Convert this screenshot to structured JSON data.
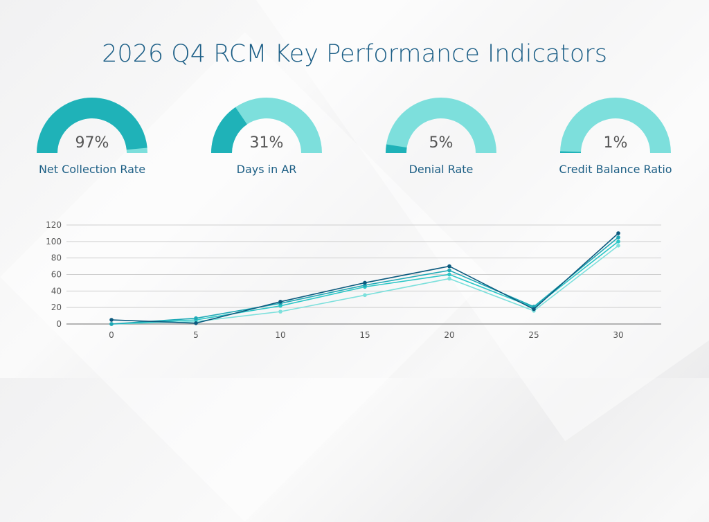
{
  "title": "2026 Q4 RCM Key Performance Indicators",
  "colors": {
    "title": "#1b5e86",
    "gauge_fill": "#1fb2b8",
    "gauge_track": "#7ddfdc"
  },
  "gauges": [
    {
      "value_text": "97%",
      "value": 97,
      "label": "Net Collection Rate"
    },
    {
      "value_text": "31%",
      "value": 31,
      "label": "Days in AR"
    },
    {
      "value_text": "5%",
      "value": 5,
      "label": "Denial Rate"
    },
    {
      "value_text": "1%",
      "value": 1,
      "label": "Credit Balance Ratio"
    }
  ],
  "chart_data": {
    "type": "line",
    "title": "",
    "xlabel": "",
    "ylabel": "",
    "x": [
      0,
      5,
      10,
      15,
      20,
      25,
      30
    ],
    "x_ticks": [
      "0",
      "5",
      "10",
      "15",
      "20",
      "25",
      "30"
    ],
    "y_ticks": [
      "0",
      "20",
      "40",
      "60",
      "80",
      "100",
      "120"
    ],
    "ylim": [
      0,
      120
    ],
    "grid": true,
    "legend": "none",
    "series": [
      {
        "color": "#0c5a7e",
        "values": [
          5,
          1,
          27,
          50,
          70,
          18,
          110
        ]
      },
      {
        "color": "#1fa9b6",
        "values": [
          0,
          7,
          25,
          47,
          65,
          21,
          105
        ]
      },
      {
        "color": "#2cc7c7",
        "values": [
          0,
          5,
          22,
          45,
          60,
          20,
          100
        ]
      },
      {
        "color": "#7de0dc",
        "values": [
          0,
          3,
          15,
          35,
          55,
          16,
          95
        ]
      }
    ]
  }
}
